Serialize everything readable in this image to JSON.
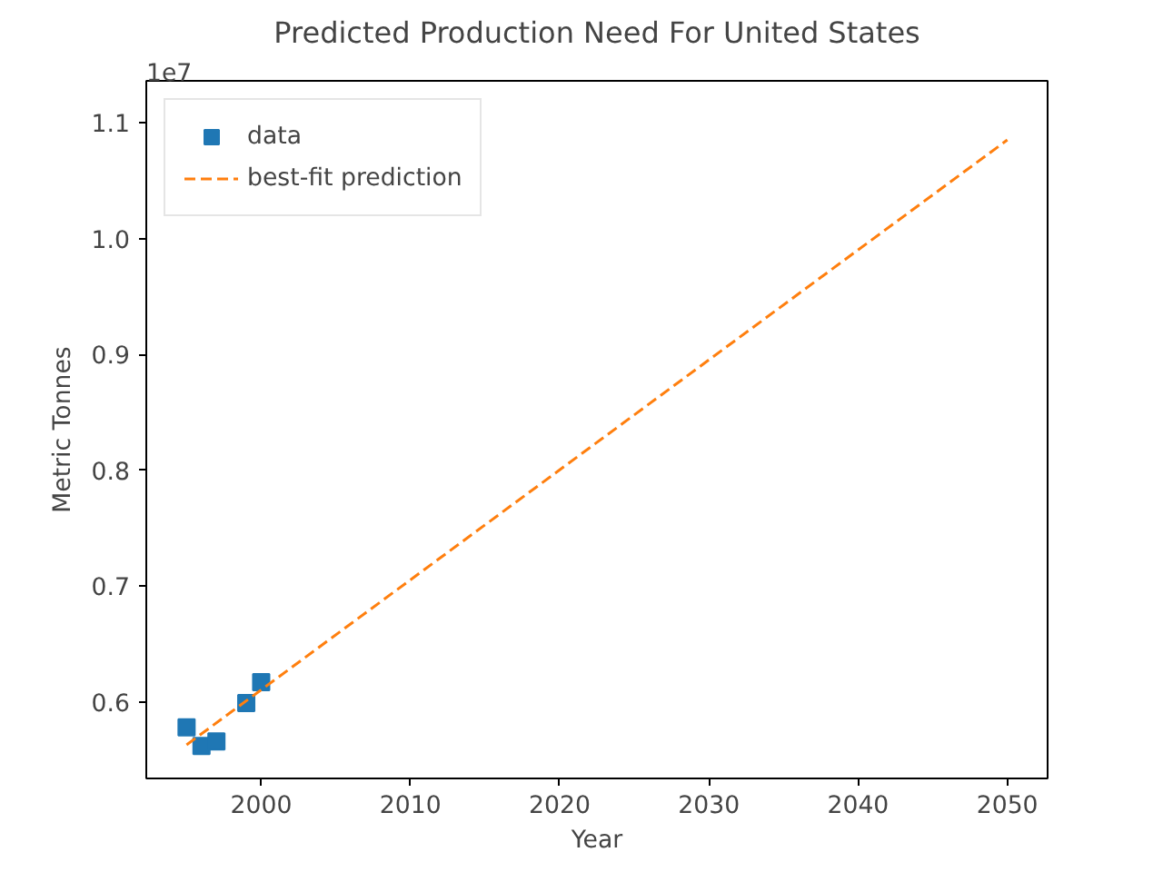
{
  "chart_data": {
    "type": "scatter",
    "title": "Predicted Production Need For United States",
    "xlabel": "Year",
    "ylabel": "Metric Tonnes",
    "xlim": [
      1992.3,
      2052.7
    ],
    "ylim": [
      0.534,
      1.136
    ],
    "xticks": [
      2000,
      2010,
      2020,
      2030,
      2040,
      2050
    ],
    "yticks": [
      0.6,
      0.7,
      0.8,
      0.9,
      {
        "value": 1.0,
        "label": "1.0"
      },
      1.1
    ],
    "annotations": [
      "1e7"
    ],
    "legend": "top left",
    "grid": false,
    "series": [
      {
        "name": "data",
        "marker": "square",
        "color": "#1f77b4",
        "x": [
          1995,
          1996,
          1997,
          1999,
          2000
        ],
        "values": [
          0.578,
          0.562,
          0.566,
          0.599,
          0.617
        ]
      },
      {
        "name": "best-fit prediction",
        "type": "line",
        "line_style": "dashed",
        "marker": "none",
        "color": "#ff7f0e",
        "x": [
          1995,
          2050
        ],
        "values": [
          0.563,
          1.085
        ]
      }
    ]
  }
}
